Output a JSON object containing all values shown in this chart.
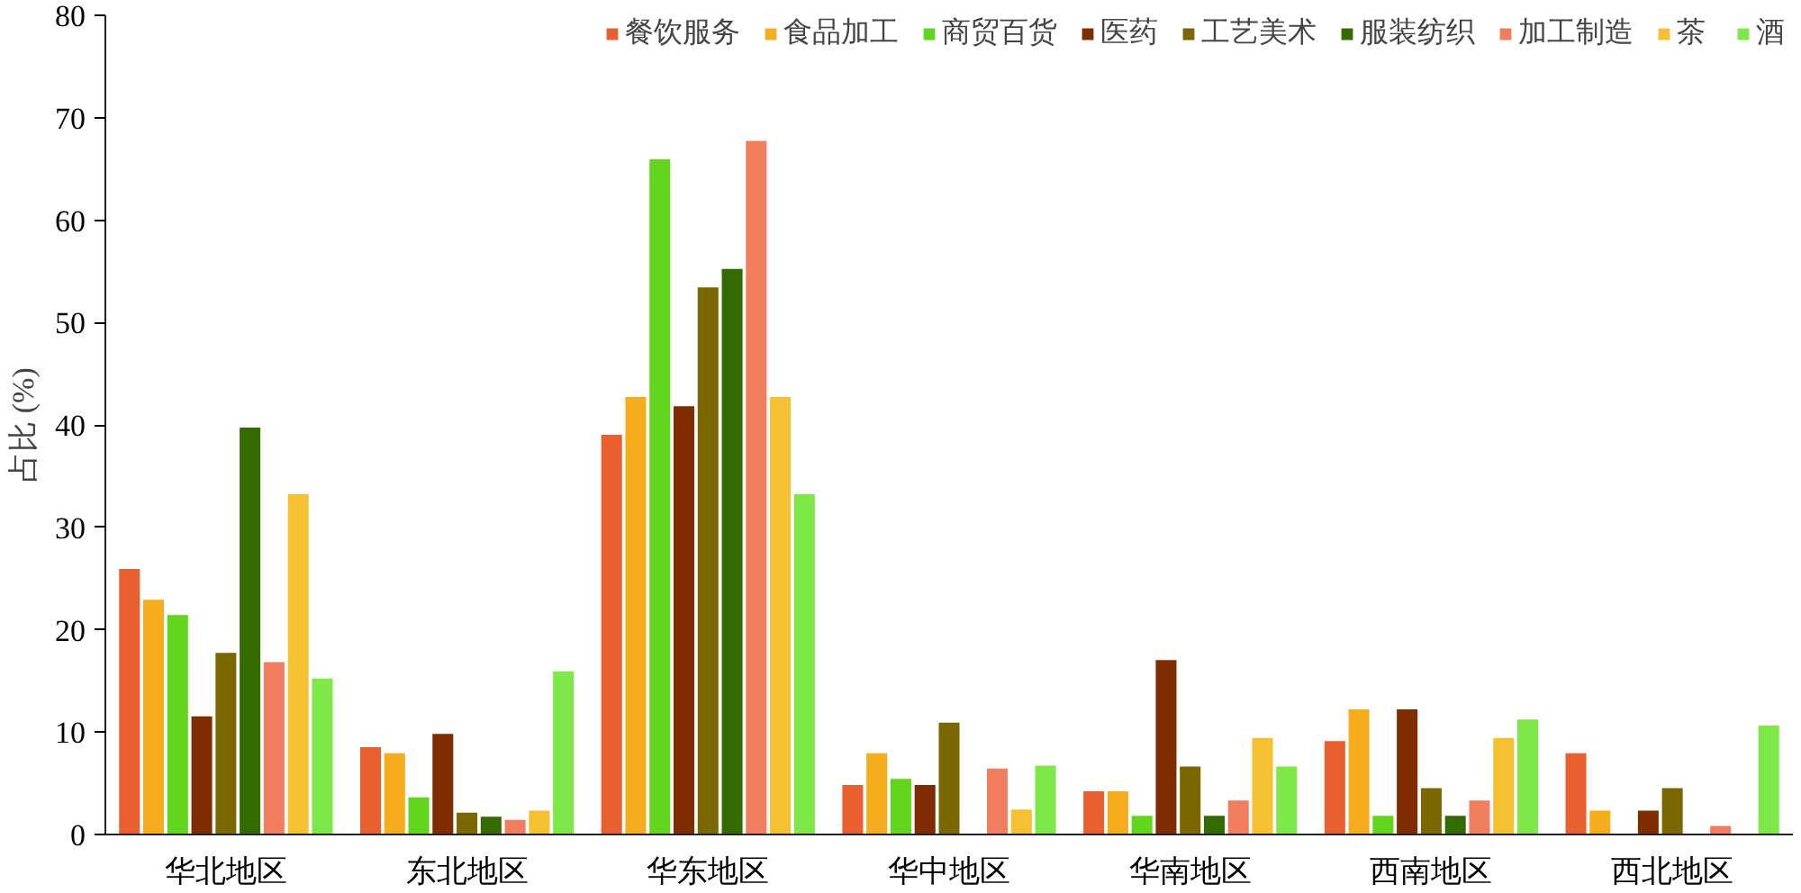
{
  "chart_data": {
    "type": "bar",
    "ylabel": "占比 (%)",
    "categories": [
      "华北地区",
      "东北地区",
      "华东地区",
      "华中地区",
      "华南地区",
      "西南地区",
      "西北地区"
    ],
    "series": [
      {
        "name": "餐饮服务",
        "color": "#e95f30",
        "values": [
          26,
          8.6,
          39.1,
          4.9,
          4.3,
          9.2,
          8
        ]
      },
      {
        "name": "食品加工",
        "color": "#f5ac1d",
        "values": [
          23,
          8,
          42.8,
          8,
          4.3,
          12.3,
          2.4
        ]
      },
      {
        "name": "商贸百货",
        "color": "#62d61d",
        "values": [
          21.5,
          3.7,
          66,
          5.5,
          1.9,
          1.9,
          null
        ]
      },
      {
        "name": "医药",
        "color": "#7f2c00",
        "values": [
          11.6,
          9.9,
          41.9,
          4.9,
          17.1,
          12.3,
          2.4
        ]
      },
      {
        "name": "工艺美术",
        "color": "#7b6700",
        "values": [
          17.8,
          2.2,
          53.5,
          11,
          6.7,
          4.6,
          4.6
        ]
      },
      {
        "name": "服装纺织",
        "color": "#336b00",
        "values": [
          39.8,
          1.8,
          55.3,
          null,
          1.9,
          1.9,
          null
        ]
      },
      {
        "name": "加工制造",
        "color": "#f07e5f",
        "values": [
          16.9,
          1.5,
          67.8,
          6.5,
          3.4,
          3.4,
          0.9
        ]
      },
      {
        "name": "茶",
        "color": "#f5c031",
        "values": [
          33.3,
          2.4,
          42.8,
          2.5,
          9.5,
          9.5,
          null
        ]
      },
      {
        "name": "酒",
        "color": "#7de848",
        "values": [
          15.3,
          16,
          33.3,
          6.8,
          6.7,
          11.3,
          10.7
        ]
      }
    ],
    "ylim": [
      0,
      80
    ],
    "yticks": [
      0,
      10,
      20,
      30,
      40,
      50,
      60,
      70,
      80
    ],
    "grid": false,
    "legend": "top"
  }
}
